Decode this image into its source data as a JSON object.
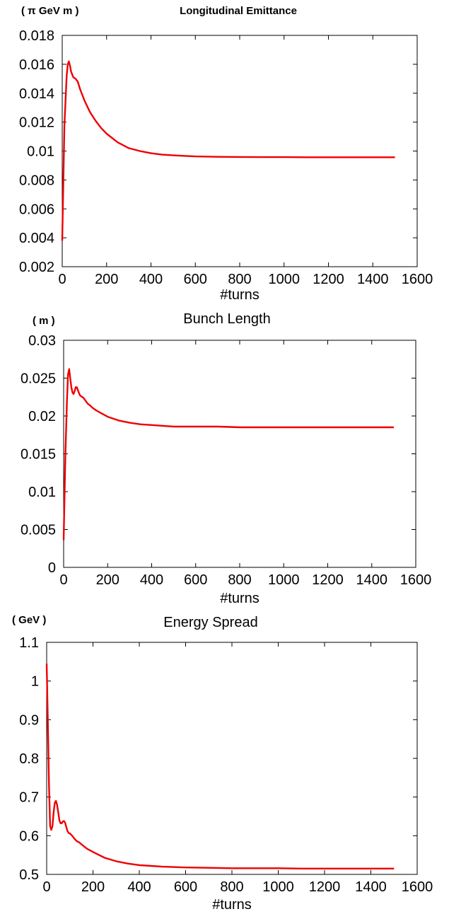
{
  "colors": {
    "series": "#ee0000",
    "axis": "#000000",
    "background": "#ffffff"
  },
  "chart_data": [
    {
      "type": "line",
      "title": "Longitudinal Emittance",
      "unit_label": "( π GeV m )",
      "xlabel": "#turns",
      "ylabel": "",
      "xlim": [
        0,
        1600
      ],
      "ylim": [
        0.002,
        0.018
      ],
      "xticks": [
        0,
        200,
        400,
        600,
        800,
        1000,
        1200,
        1400,
        1600
      ],
      "yticks": [
        0.002,
        0.004,
        0.006,
        0.008,
        0.01,
        0.012,
        0.014,
        0.016,
        0.018
      ],
      "xtick_labels": [
        "0",
        "200",
        "400",
        "600",
        "800",
        "1000",
        "1200",
        "1400",
        "1600"
      ],
      "ytick_labels": [
        "0.002",
        "0.004",
        "0.006",
        "0.008",
        "0.01",
        "0.012",
        "0.014",
        "0.016",
        "0.018"
      ],
      "series": [
        {
          "x": [
            0,
            10,
            20,
            25,
            30,
            35,
            40,
            50,
            60,
            70,
            80,
            100,
            125,
            150,
            175,
            200,
            250,
            300,
            350,
            400,
            450,
            500,
            600,
            700,
            800,
            900,
            1000,
            1100,
            1200,
            1300,
            1400,
            1500
          ],
          "y": [
            0.0038,
            0.0118,
            0.0152,
            0.016,
            0.0162,
            0.0159,
            0.0155,
            0.0151,
            0.015,
            0.0148,
            0.0143,
            0.0135,
            0.0127,
            0.0121,
            0.0116,
            0.0112,
            0.0106,
            0.0102,
            0.01,
            0.00985,
            0.00975,
            0.0097,
            0.00963,
            0.0096,
            0.00959,
            0.00958,
            0.00958,
            0.00957,
            0.00957,
            0.00957,
            0.00957,
            0.00957
          ]
        }
      ]
    },
    {
      "type": "line",
      "title": "Bunch Length",
      "unit_label": "( m )",
      "xlabel": "#turns",
      "ylabel": "",
      "xlim": [
        0,
        1600
      ],
      "ylim": [
        0,
        0.03
      ],
      "xticks": [
        0,
        200,
        400,
        600,
        800,
        1000,
        1200,
        1400,
        1600
      ],
      "yticks": [
        0,
        0.005,
        0.01,
        0.015,
        0.02,
        0.025,
        0.03
      ],
      "xtick_labels": [
        "0",
        "200",
        "400",
        "600",
        "800",
        "1000",
        "1200",
        "1400",
        "1600"
      ],
      "ytick_labels": [
        "0",
        "0.005",
        "0.01",
        "0.015",
        "0.02",
        "0.025",
        "0.03"
      ],
      "series": [
        {
          "x": [
            0,
            8,
            15,
            20,
            25,
            30,
            35,
            40,
            45,
            50,
            55,
            60,
            65,
            70,
            75,
            80,
            90,
            100,
            110,
            120,
            130,
            140,
            150,
            175,
            200,
            250,
            300,
            350,
            400,
            450,
            500,
            600,
            700,
            800,
            900,
            1000,
            1100,
            1200,
            1300,
            1400,
            1500
          ],
          "y": [
            0.0036,
            0.015,
            0.022,
            0.0255,
            0.0262,
            0.025,
            0.0238,
            0.0231,
            0.0229,
            0.0233,
            0.0238,
            0.0238,
            0.0234,
            0.023,
            0.0227,
            0.0226,
            0.0224,
            0.022,
            0.0216,
            0.0214,
            0.0211,
            0.0209,
            0.0207,
            0.0203,
            0.0199,
            0.0194,
            0.0191,
            0.0189,
            0.0188,
            0.0187,
            0.0186,
            0.0186,
            0.0186,
            0.0185,
            0.0185,
            0.0185,
            0.0185,
            0.0185,
            0.0185,
            0.0185,
            0.0185
          ]
        }
      ]
    },
    {
      "type": "line",
      "title": "Energy Spread",
      "unit_label": "( GeV )",
      "xlabel": "#turns",
      "ylabel": "",
      "xlim": [
        0,
        1600
      ],
      "ylim": [
        0.5,
        1.1
      ],
      "xticks": [
        0,
        200,
        400,
        600,
        800,
        1000,
        1200,
        1400,
        1600
      ],
      "yticks": [
        0.5,
        0.6,
        0.7,
        0.8,
        0.9,
        1,
        1.1
      ],
      "xtick_labels": [
        "0",
        "200",
        "400",
        "600",
        "800",
        "1000",
        "1200",
        "1400",
        "1600"
      ],
      "ytick_labels": [
        "0.5",
        "0.6",
        "0.7",
        "0.8",
        "0.9",
        "1",
        "1.1"
      ],
      "series": [
        {
          "x": [
            0,
            5,
            10,
            15,
            20,
            25,
            30,
            35,
            40,
            45,
            50,
            55,
            60,
            65,
            70,
            75,
            80,
            85,
            90,
            95,
            100,
            110,
            120,
            130,
            140,
            150,
            175,
            200,
            250,
            300,
            350,
            400,
            450,
            500,
            600,
            700,
            800,
            900,
            1000,
            1100,
            1200,
            1300,
            1400,
            1500
          ],
          "y": [
            1.045,
            0.9,
            0.73,
            0.625,
            0.615,
            0.625,
            0.66,
            0.685,
            0.69,
            0.68,
            0.66,
            0.64,
            0.632,
            0.632,
            0.637,
            0.638,
            0.633,
            0.622,
            0.612,
            0.607,
            0.606,
            0.6,
            0.592,
            0.586,
            0.583,
            0.578,
            0.566,
            0.558,
            0.543,
            0.534,
            0.528,
            0.524,
            0.522,
            0.52,
            0.518,
            0.517,
            0.516,
            0.516,
            0.516,
            0.515,
            0.515,
            0.515,
            0.515,
            0.515
          ]
        }
      ]
    }
  ]
}
